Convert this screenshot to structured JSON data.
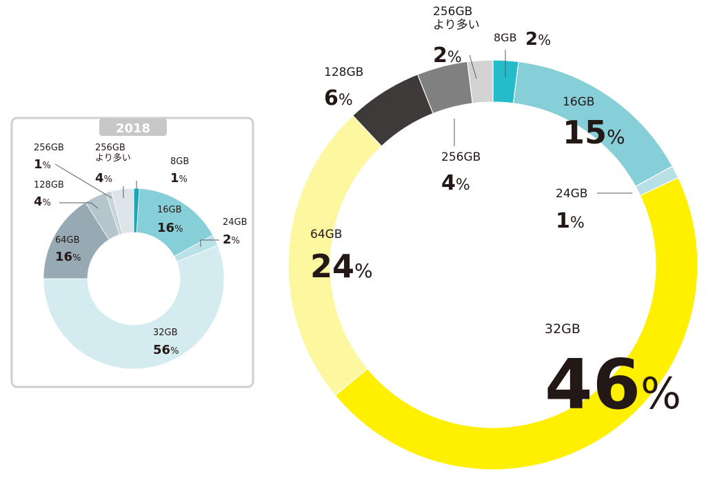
{
  "chart_data": [
    {
      "type": "pie",
      "title": "2018",
      "unit_suffix": "%",
      "categories": [
        "8GB",
        "16GB",
        "24GB",
        "32GB",
        "64GB",
        "128GB",
        "256GB",
        "256GBより多い"
      ],
      "values": [
        1,
        16,
        2,
        56,
        16,
        4,
        1,
        4
      ],
      "colors": [
        "#1aa7b8",
        "#86cfd9",
        "#b9e1e7",
        "#d4ecf0",
        "#97a9b2",
        "#b5c5cc",
        "#c7d3d9",
        "#dde5ea"
      ]
    },
    {
      "type": "pie",
      "title": "",
      "unit_suffix": "%",
      "categories": [
        "8GB",
        "16GB",
        "24GB",
        "32GB",
        "64GB",
        "128GB",
        "256GB",
        "256GBより多い"
      ],
      "values": [
        2,
        15,
        1,
        46,
        24,
        6,
        4,
        2
      ],
      "colors": [
        "#24bccb",
        "#86cfd9",
        "#b6e0e6",
        "#fff000",
        "#fdf8a0",
        "#3e3a39",
        "#808080",
        "#d3d3d3"
      ]
    }
  ]
}
